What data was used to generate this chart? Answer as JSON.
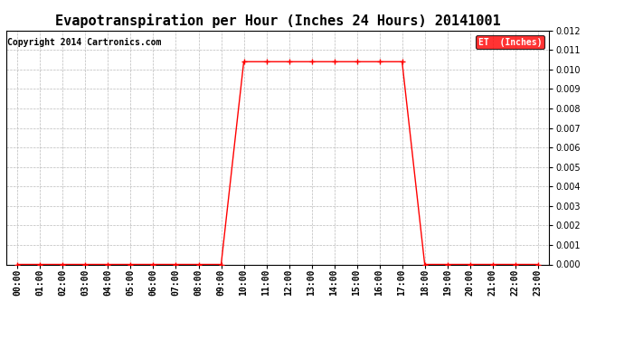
{
  "title": "Evapotranspiration per Hour (Inches 24 Hours) 20141001",
  "copyright_text": "Copyright 2014 Cartronics.com",
  "legend_label": "ET  (Inches)",
  "legend_bg": "#ff0000",
  "legend_fg": "#ffffff",
  "line_color": "#ff0000",
  "marker_color": "#ff0000",
  "ylim": [
    0,
    0.012
  ],
  "yticks": [
    0.0,
    0.001,
    0.002,
    0.003,
    0.004,
    0.005,
    0.006,
    0.007,
    0.008,
    0.009,
    0.01,
    0.011,
    0.012
  ],
  "hours": [
    "00:00",
    "01:00",
    "02:00",
    "03:00",
    "04:00",
    "05:00",
    "06:00",
    "07:00",
    "08:00",
    "09:00",
    "10:00",
    "11:00",
    "12:00",
    "13:00",
    "14:00",
    "15:00",
    "16:00",
    "17:00",
    "18:00",
    "19:00",
    "20:00",
    "21:00",
    "22:00",
    "23:00"
  ],
  "values": [
    0.0,
    0.0,
    0.0,
    0.0,
    0.0,
    0.0,
    0.0,
    0.0,
    0.0,
    0.0,
    0.0104,
    0.0104,
    0.0104,
    0.0104,
    0.0104,
    0.0104,
    0.0104,
    0.0104,
    0.0,
    0.0,
    0.0,
    0.0,
    0.0,
    0.0
  ],
  "background_color": "#ffffff",
  "plot_bg_color": "#ffffff",
  "grid_color": "#bbbbbb",
  "title_fontsize": 11,
  "copyright_fontsize": 7,
  "tick_labelsize": 7,
  "ytick_labelsize": 7
}
